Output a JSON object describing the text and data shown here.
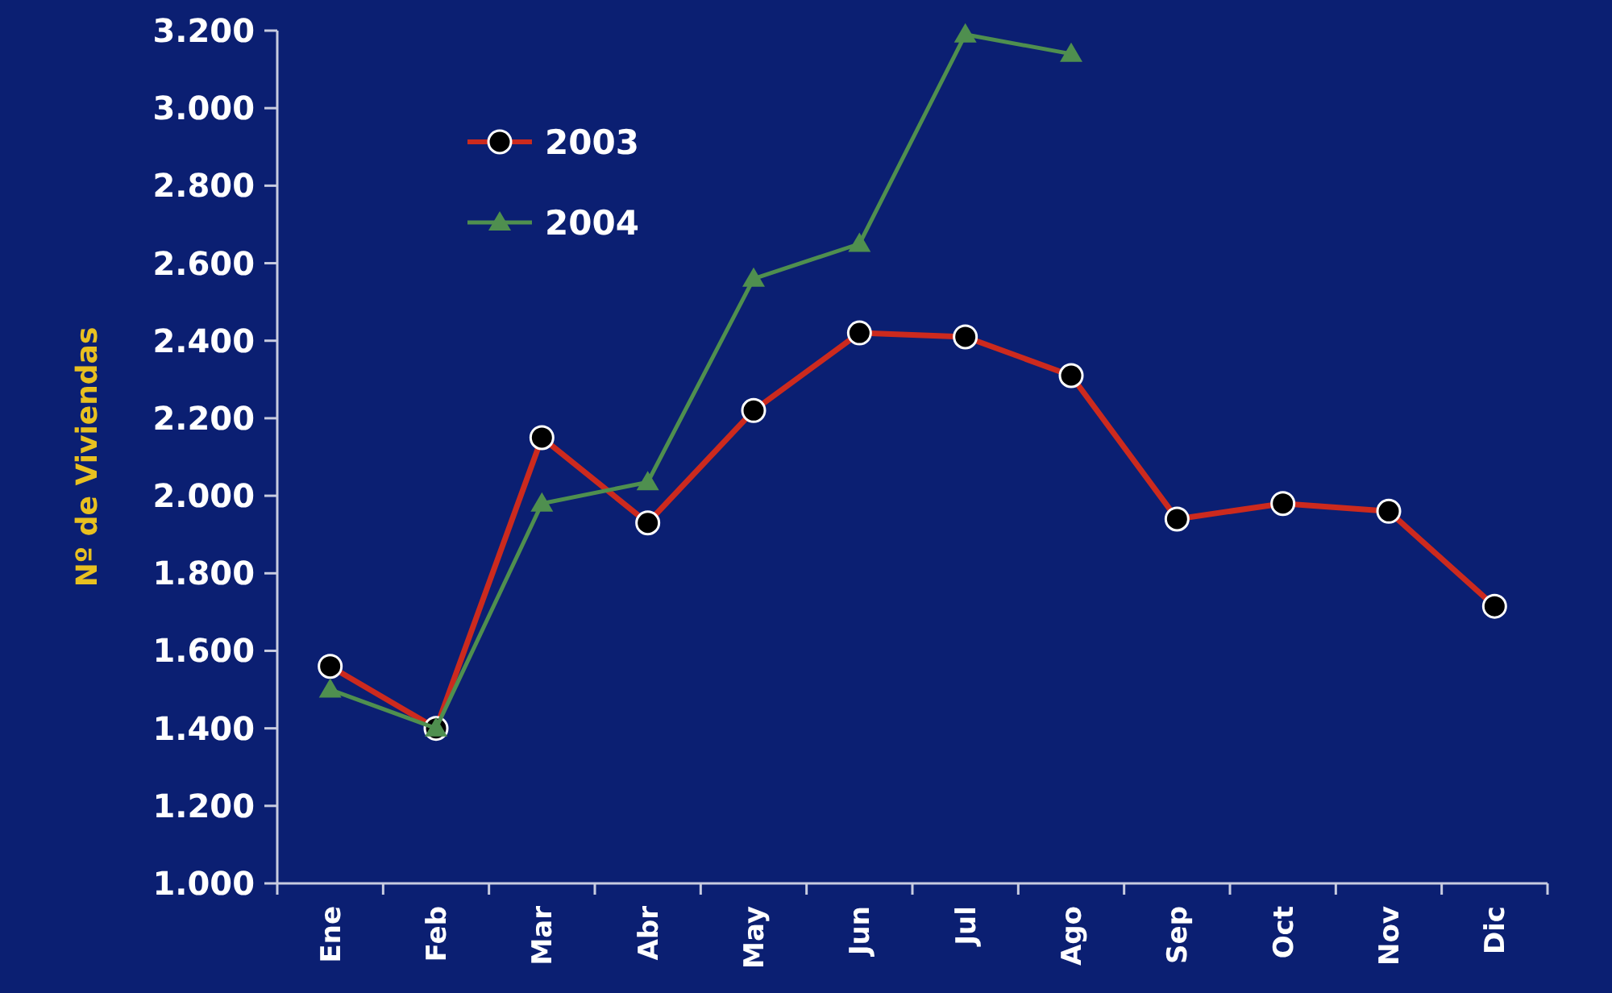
{
  "chart_data": {
    "type": "line",
    "ylabel": "Nº de Viviendas",
    "categories": [
      "Ene",
      "Feb",
      "Mar",
      "Abr",
      "May",
      "Jun",
      "Jul",
      "Ago",
      "Sep",
      "Oct",
      "Nov",
      "Dic"
    ],
    "series": [
      {
        "name": "2003",
        "color": "#cc2a1e",
        "marker": "circle",
        "values": [
          1560,
          1400,
          2150,
          1930,
          2220,
          2420,
          2410,
          2310,
          1940,
          1980,
          1960,
          1715
        ]
      },
      {
        "name": "2004",
        "color": "#4f8f4f",
        "marker": "triangle",
        "values": [
          1500,
          1400,
          1980,
          2035,
          2560,
          2650,
          3190,
          3140,
          null,
          null,
          null,
          null
        ]
      }
    ],
    "ylim": [
      1000,
      3200
    ],
    "yticks": [
      {
        "value": 1000,
        "label": "1.000"
      },
      {
        "value": 1200,
        "label": "1.200"
      },
      {
        "value": 1400,
        "label": "1.400"
      },
      {
        "value": 1600,
        "label": "1.600"
      },
      {
        "value": 1800,
        "label": "1.800"
      },
      {
        "value": 2000,
        "label": "2.000"
      },
      {
        "value": 2200,
        "label": "2.200"
      },
      {
        "value": 2400,
        "label": "2.400"
      },
      {
        "value": 2600,
        "label": "2.600"
      },
      {
        "value": 2800,
        "label": "2.800"
      },
      {
        "value": 3000,
        "label": "3.000"
      },
      {
        "value": 3200,
        "label": "3.200"
      }
    ],
    "grid": false,
    "legend": "top left"
  }
}
